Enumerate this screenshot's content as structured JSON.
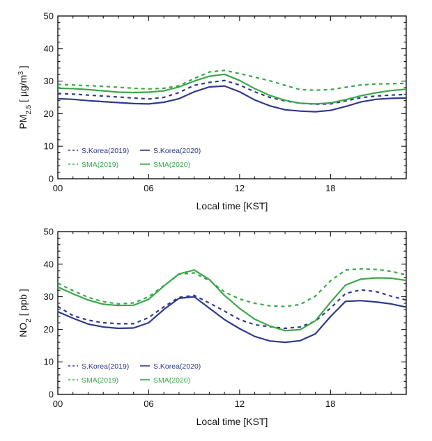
{
  "chart_data": [
    {
      "type": "line",
      "id": "pm25",
      "xlabel": "Local time [KST]",
      "ylabel": {
        "main": "PM",
        "sub": "2.5",
        "pre_unit": " [ µg/m",
        "sup": "3",
        "post_unit": " ]"
      },
      "x": [
        0,
        1,
        2,
        3,
        4,
        5,
        6,
        7,
        8,
        9,
        10,
        11,
        12,
        13,
        14,
        15,
        16,
        17,
        18,
        19,
        20,
        21,
        22,
        23
      ],
      "xlim": [
        0,
        23
      ],
      "ylim": [
        0,
        50
      ],
      "xticks": [
        0,
        6,
        12,
        18
      ],
      "xtick_labels": [
        "00",
        "06",
        "12",
        "18"
      ],
      "yticks": [
        0,
        10,
        20,
        30,
        40,
        50
      ],
      "ytick_labels": [
        "0",
        "10",
        "20",
        "30",
        "40",
        "50"
      ],
      "legend_position": "lower-left",
      "series": [
        {
          "name": "S.Korea(2019)",
          "color": "#2e3a8c",
          "style": "dashed",
          "values": [
            26.2,
            26.0,
            25.7,
            25.4,
            25.1,
            24.8,
            24.5,
            25.0,
            26.5,
            28.7,
            29.6,
            30.2,
            28.8,
            26.7,
            25.0,
            23.9,
            23.2,
            22.9,
            23.0,
            23.9,
            24.9,
            25.4,
            25.7,
            25.9
          ]
        },
        {
          "name": "S.Korea(2020)",
          "color": "#2e3a8c",
          "style": "solid",
          "values": [
            24.6,
            24.4,
            24.0,
            23.7,
            23.4,
            23.1,
            23.0,
            23.5,
            24.6,
            26.7,
            28.2,
            28.5,
            26.7,
            24.2,
            22.4,
            21.2,
            20.8,
            20.6,
            21.0,
            22.2,
            23.6,
            24.4,
            24.7,
            24.8
          ]
        },
        {
          "name": "SMA(2019)",
          "color": "#3aa84a",
          "style": "dashed",
          "values": [
            29.0,
            28.8,
            28.6,
            28.4,
            28.1,
            27.8,
            27.6,
            27.8,
            28.6,
            30.8,
            32.8,
            33.3,
            32.3,
            31.2,
            30.1,
            28.7,
            27.4,
            27.2,
            27.4,
            28.1,
            28.8,
            29.1,
            29.2,
            29.3
          ]
        },
        {
          "name": "SMA(2020)",
          "color": "#3aa84a",
          "style": "solid",
          "values": [
            27.8,
            27.7,
            27.4,
            27.0,
            26.6,
            26.5,
            26.6,
            27.0,
            28.2,
            30.0,
            31.5,
            32.1,
            30.2,
            27.7,
            25.6,
            24.1,
            23.2,
            23.0,
            23.3,
            24.3,
            25.5,
            26.4,
            27.1,
            27.5
          ]
        }
      ]
    },
    {
      "type": "line",
      "id": "no2",
      "xlabel": "Local time [KST]",
      "ylabel": {
        "main": "NO",
        "sub": "2",
        "pre_unit": " [ ppb",
        "sup": "",
        "post_unit": " ]"
      },
      "x": [
        0,
        1,
        2,
        3,
        4,
        5,
        6,
        7,
        8,
        9,
        10,
        11,
        12,
        13,
        14,
        15,
        16,
        17,
        18,
        19,
        20,
        21,
        22,
        23
      ],
      "xlim": [
        0,
        23
      ],
      "ylim": [
        0,
        50
      ],
      "xticks": [
        0,
        6,
        12,
        18
      ],
      "xtick_labels": [
        "00",
        "06",
        "12",
        "18"
      ],
      "yticks": [
        0,
        10,
        20,
        30,
        40,
        50
      ],
      "ytick_labels": [
        "0",
        "10",
        "20",
        "30",
        "40",
        "50"
      ],
      "legend_position": "lower-left",
      "series": [
        {
          "name": "S.Korea(2019)",
          "color": "#2e3a8c",
          "style": "dashed",
          "values": [
            27.0,
            24.2,
            22.8,
            22.0,
            21.7,
            21.7,
            23.6,
            26.9,
            29.8,
            30.4,
            28.1,
            25.6,
            23.0,
            21.4,
            20.8,
            20.3,
            20.7,
            22.5,
            26.5,
            31.0,
            32.1,
            31.6,
            30.2,
            29.0
          ]
        },
        {
          "name": "S.Korea(2020)",
          "color": "#2e3a8c",
          "style": "solid",
          "values": [
            25.4,
            23.4,
            21.6,
            20.7,
            20.3,
            20.4,
            22.0,
            26.1,
            29.5,
            30.0,
            26.5,
            23.0,
            20.2,
            17.8,
            16.4,
            16.0,
            16.5,
            18.6,
            23.9,
            28.6,
            28.8,
            28.4,
            27.8,
            26.8
          ]
        },
        {
          "name": "SMA(2019)",
          "color": "#3aa84a",
          "style": "dashed",
          "values": [
            34.1,
            31.9,
            29.8,
            28.5,
            27.8,
            28.1,
            30.0,
            33.4,
            36.9,
            37.3,
            35.0,
            31.5,
            29.3,
            28.0,
            27.2,
            27.0,
            27.6,
            30.2,
            34.9,
            38.2,
            38.6,
            38.4,
            37.8,
            36.7
          ]
        },
        {
          "name": "SMA(2020)",
          "color": "#3aa84a",
          "style": "solid",
          "values": [
            33.0,
            30.9,
            29.0,
            27.7,
            27.3,
            27.4,
            29.2,
            33.3,
            37.0,
            38.2,
            35.3,
            30.4,
            26.4,
            23.1,
            21.0,
            19.6,
            19.9,
            22.6,
            28.3,
            33.6,
            35.4,
            35.8,
            35.7,
            35.0
          ]
        }
      ]
    }
  ]
}
